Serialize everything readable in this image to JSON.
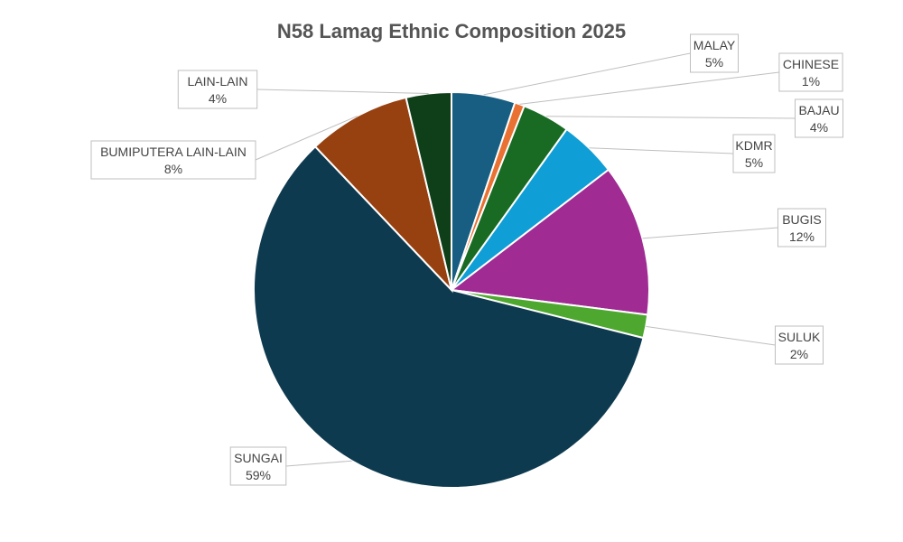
{
  "chart_data": {
    "type": "pie",
    "title": "N58 Lamag Ethnic Composition 2025",
    "slices": [
      {
        "label": "MALAY",
        "pct_text": "5%",
        "value": 5.2,
        "color": "#175e82"
      },
      {
        "label": "CHINESE",
        "pct_text": "1%",
        "value": 0.8,
        "color": "#e97132"
      },
      {
        "label": "BAJAU",
        "pct_text": "4%",
        "value": 3.9,
        "color": "#196b24"
      },
      {
        "label": "KDMR",
        "pct_text": "5%",
        "value": 4.7,
        "color": "#0f9ed5"
      },
      {
        "label": "BUGIS",
        "pct_text": "12%",
        "value": 12.4,
        "color": "#a02b93"
      },
      {
        "label": "SULUK",
        "pct_text": "2%",
        "value": 1.9,
        "color": "#4ea72e"
      },
      {
        "label": "SUNGAI",
        "pct_text": "59%",
        "value": 59.0,
        "color": "#0e3a4f"
      },
      {
        "label": "BUMIPUTERA LAIN-LAIN",
        "pct_text": "8%",
        "value": 8.4,
        "color": "#974010"
      },
      {
        "label": "LAIN-LAIN",
        "pct_text": "4%",
        "value": 3.7,
        "color": "#0f3f19"
      }
    ],
    "start_angle": "12 o'clock",
    "direction": "clockwise",
    "legend": "none",
    "data_labels": "outside-with-leader-lines"
  }
}
